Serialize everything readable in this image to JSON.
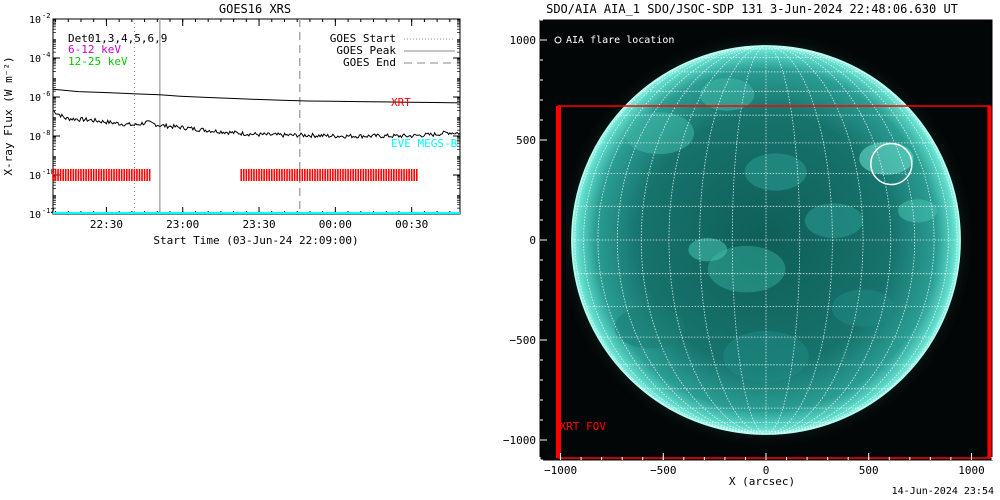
{
  "footer": {
    "timestamp": "14-Jun-2024 23:54"
  },
  "chart_data": [
    {
      "type": "line",
      "title": "GOES16 XRS",
      "xlabel": "Start Time (03-Jun-24 22:09:00)",
      "ylabel": "X-ray Flux (W m⁻²)",
      "yscale": "log",
      "ylim": [
        1e-12,
        0.01
      ],
      "xlim_minutes_after_start": [
        0,
        160
      ],
      "x_ticks": [
        {
          "label": "22:30",
          "min": 21
        },
        {
          "label": "23:00",
          "min": 51
        },
        {
          "label": "23:30",
          "min": 81
        },
        {
          "label": "00:00",
          "min": 111
        },
        {
          "label": "00:30",
          "min": 141
        }
      ],
      "y_ticks": [
        {
          "label": "10",
          "exp": "-2",
          "value": 0.01
        },
        {
          "label": "10",
          "exp": "-4",
          "value": 0.0001
        },
        {
          "label": "10",
          "exp": "-6",
          "value": 1e-06
        },
        {
          "label": "10",
          "exp": "-8",
          "value": 1e-08
        },
        {
          "label": "10",
          "exp": "-10",
          "value": 1e-10
        },
        {
          "label": "10",
          "exp": "-12",
          "value": 1e-12
        }
      ],
      "annotations": [
        {
          "text": "Det01,3,4,5,6,9",
          "color": "#000000"
        },
        {
          "text": "6-12 keV",
          "color": "#cc00cc"
        },
        {
          "text": "12-25 keV",
          "color": "#00cc00"
        },
        {
          "text": "XRT",
          "color": "#ff0000"
        },
        {
          "text": "EVE MEGS-B",
          "color": "#00ffff"
        }
      ],
      "legend": [
        {
          "label": "GOES Start",
          "style": "dotted"
        },
        {
          "label": "GOES Peak",
          "style": "solid"
        },
        {
          "label": "GOES End",
          "style": "dashed"
        }
      ],
      "legend_position": "top-right",
      "event_lines_min": {
        "start": 32,
        "peak": 42,
        "end": 97
      },
      "series": [
        {
          "color": "#000000",
          "x_min": [
            0,
            10,
            20,
            30,
            42,
            50,
            60,
            70,
            80,
            90,
            100,
            110,
            120,
            130,
            140,
            150,
            160
          ],
          "y": [
            2.5e-06,
            1.9e-06,
            1.7e-06,
            1.5e-06,
            1.3e-06,
            1.1e-06,
            9.5e-07,
            8.5e-07,
            7.5e-07,
            6.8e-07,
            6.2e-07,
            6e-07,
            5.8e-07,
            5.6e-07,
            5.4e-07,
            5.2e-07,
            5e-07
          ]
        },
        {
          "color": "#000000",
          "noisy": true,
          "x_min": [
            0,
            5,
            15,
            25,
            32,
            37,
            42,
            50,
            60,
            70,
            80,
            90,
            100,
            110,
            120,
            130,
            140,
            150,
            155,
            160
          ],
          "y": [
            2e-07,
            8e-08,
            6.5e-08,
            4.5e-08,
            3.6e-08,
            5e-08,
            3.5e-08,
            2.8e-08,
            2e-08,
            1.5e-08,
            1.2e-08,
            1.1e-08,
            1.1e-08,
            1e-08,
            1e-08,
            1e-08,
            1e-08,
            1.2e-08,
            1.5e-08,
            1.4e-08
          ]
        }
      ],
      "xrt_coverage_min": [
        [
          0,
          38
        ],
        [
          74,
          143
        ]
      ],
      "xrt_coverage_level": 1e-10,
      "eve_megs_b_level": 1e-12
    },
    {
      "type": "image",
      "title": "SDO/AIA AIA_1 SDO/JSOC-SDP 131  3-Jun-2024 22:48:06.630 UT",
      "xlabel": "X (arcsec)",
      "xlim": [
        -1100,
        1100
      ],
      "ylim": [
        -1100,
        1100
      ],
      "x_ticks": [
        -1000,
        -500,
        0,
        500,
        1000
      ],
      "y_ticks": [
        -1000,
        -500,
        0,
        500,
        1000
      ],
      "x_tick_labels": [
        "−1000",
        "−500",
        "0",
        "500",
        "1000"
      ],
      "y_tick_labels": [
        "−1000",
        "−500",
        "0",
        "500",
        "1000"
      ],
      "solar_radius_arcsec": 945,
      "grid_step_deg": 10,
      "flare_location_label": "AIA flare location",
      "flare_location_arcsec": [
        610,
        380
      ],
      "flare_circle_radius_arcsec": 100,
      "xrt_fov_label": "XRT FOV",
      "xrt_fov_arcsec": {
        "x": [
          -1010,
          1090
        ],
        "y": [
          -1090,
          670
        ]
      },
      "colors": {
        "disk": "#1a7f78",
        "limb": "#66eedd",
        "xrt": "#ff0000",
        "grid": "#ffffff"
      }
    }
  ]
}
